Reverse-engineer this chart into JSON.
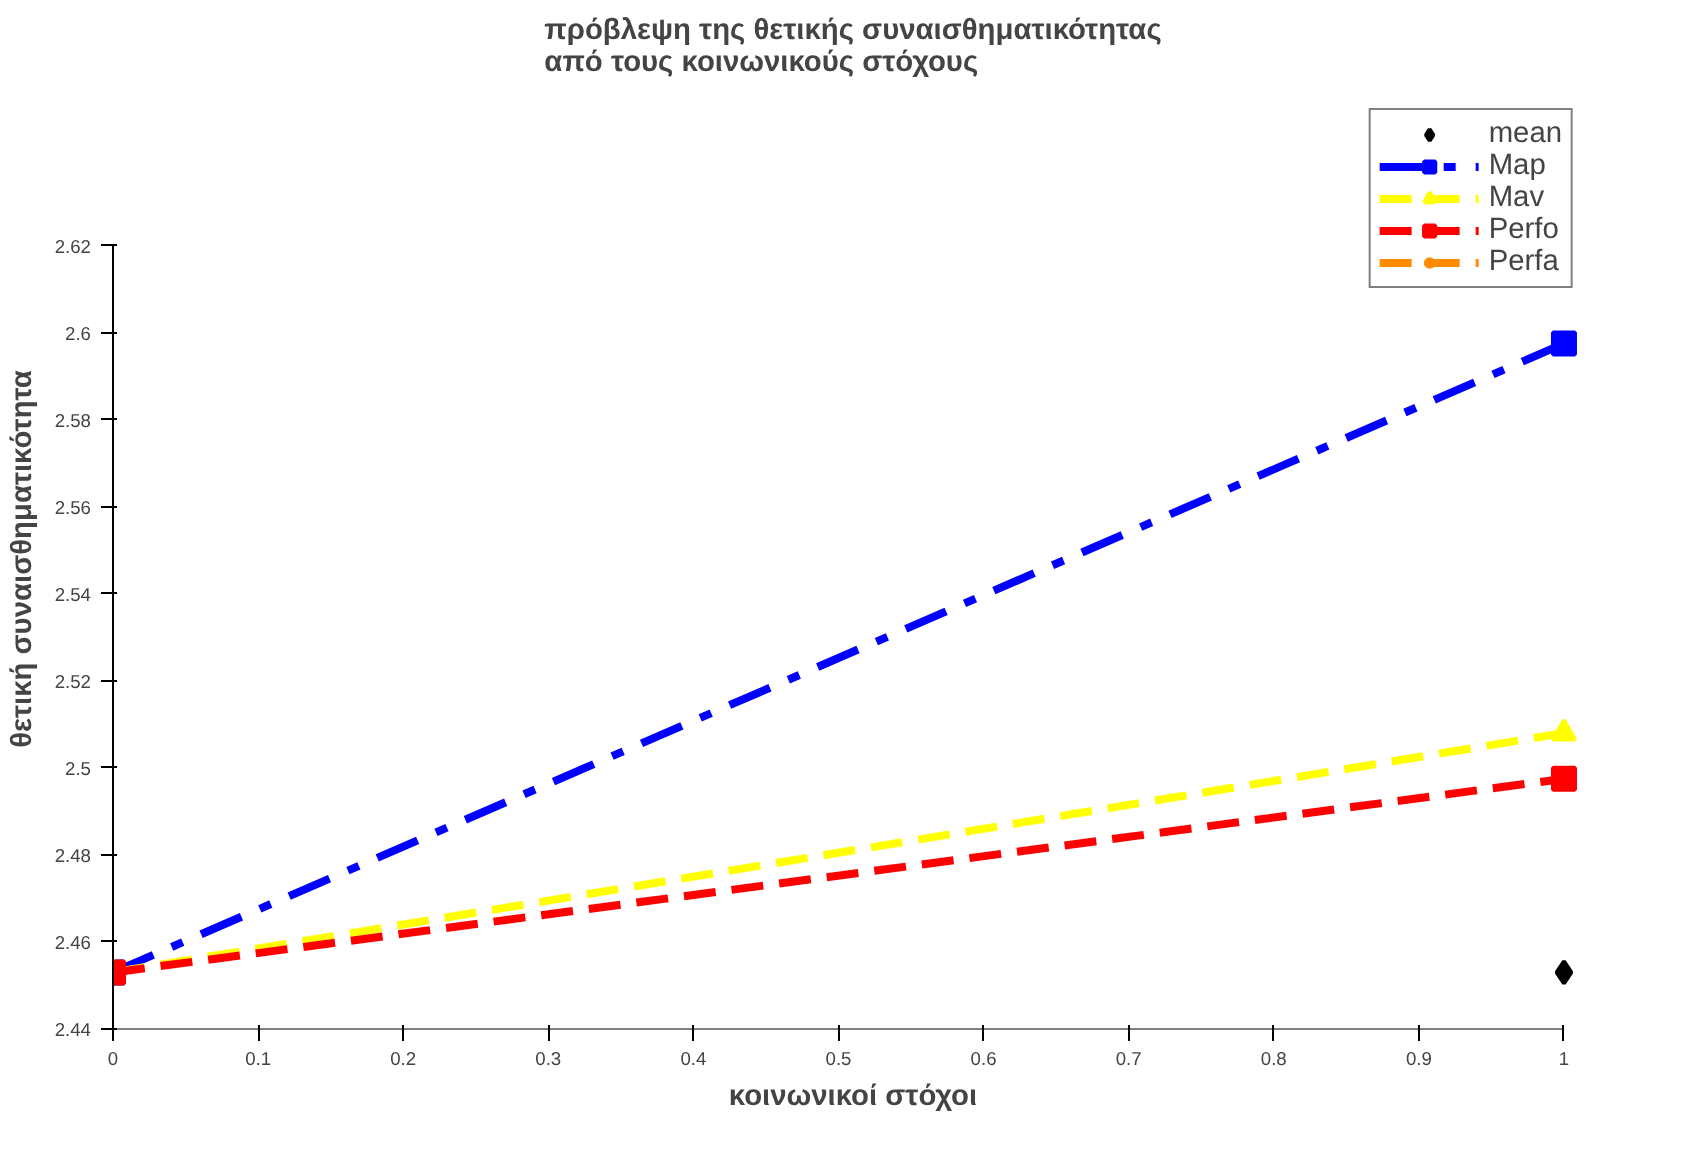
{
  "chart_data": {
    "type": "line",
    "title": "πρόβλεψη της θετικής συναισθηματικότητας\nαπό τους κοινωνικούς στόχους",
    "xlabel": "κοινωνικοί στόχοι",
    "ylabel": "θετική συναισθηματικότητα",
    "x": [
      0,
      1
    ],
    "series": [
      {
        "name": "mean",
        "color": "#000000",
        "values": [
          null,
          2.453
        ],
        "marker": "diamond",
        "line_style": "none"
      },
      {
        "name": "Map",
        "color": "#0000ff",
        "values": [
          2.453,
          2.5975
        ],
        "marker": "square",
        "line_style": "dashdot"
      },
      {
        "name": "Mav",
        "color": "#ffff00",
        "values": [
          2.453,
          2.508
        ],
        "marker": "triangle",
        "line_style": "dashed"
      },
      {
        "name": "Perfo",
        "color": "#ff0000",
        "values": [
          2.453,
          2.4975
        ],
        "marker": "square",
        "line_style": "dashed"
      },
      {
        "name": "Perfa",
        "color": "#ff8c00",
        "values": [
          null,
          null
        ],
        "marker": "star",
        "line_style": "dashed"
      }
    ],
    "xlim": [
      0,
      1
    ],
    "xticks": [
      0,
      0.1,
      0.2,
      0.3,
      0.4,
      0.5,
      0.6,
      0.7,
      0.8,
      0.9,
      1
    ],
    "ylim": [
      2.44,
      2.62
    ],
    "yticks": [
      2.44,
      2.46,
      2.48,
      2.5,
      2.52,
      2.54,
      2.56,
      2.58,
      2.6,
      2.62
    ],
    "grid": false,
    "legend": "top right"
  }
}
